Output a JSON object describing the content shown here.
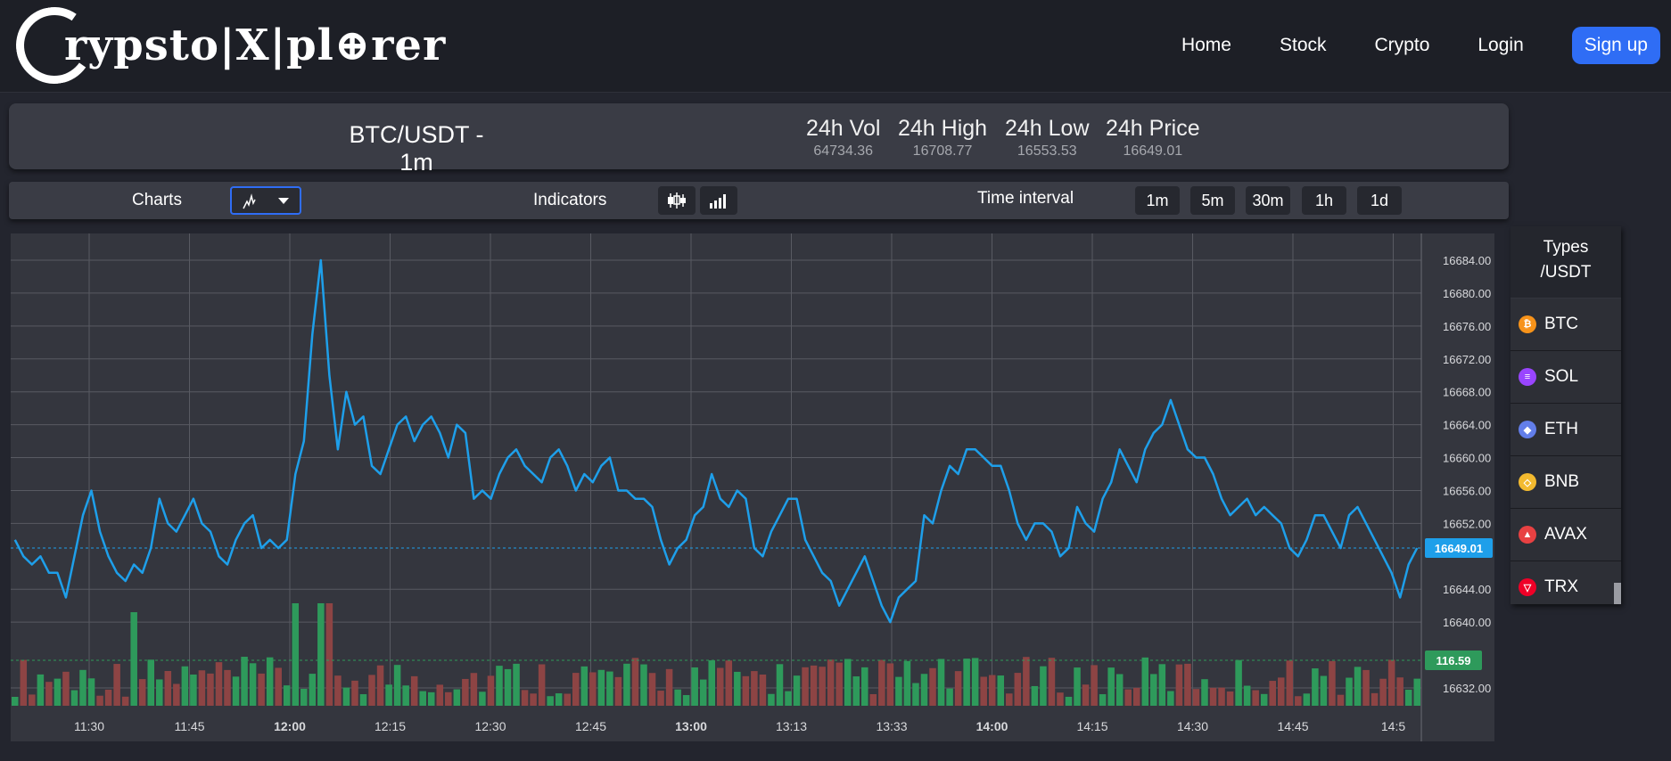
{
  "header": {
    "logo_text": "rypsto|X|pl⊕rer",
    "nav": [
      "Home",
      "Stock",
      "Crypto",
      "Login"
    ],
    "signup_label": "Sign up"
  },
  "market": {
    "pair": "BTC/USDT - 1m",
    "stats": [
      {
        "label": "24h Vol",
        "value": "64734.36"
      },
      {
        "label": "24h High",
        "value": "16708.77"
      },
      {
        "label": "24h Low",
        "value": "16553.53"
      },
      {
        "label": "24h Price",
        "value": "16649.01"
      }
    ]
  },
  "toolbar": {
    "charts_label": "Charts",
    "indicators_label": "Indicators",
    "interval_label": "Time interval",
    "intervals": [
      "1m",
      "5m",
      "30m",
      "1h",
      "1d"
    ]
  },
  "sidebar": {
    "title_line1": "Types",
    "title_line2": "/USDT",
    "coins": [
      {
        "name": "BTC",
        "color": "#f7931a",
        "glyph": "₿"
      },
      {
        "name": "SOL",
        "color": "#9945ff",
        "glyph": "≡"
      },
      {
        "name": "ETH",
        "color": "#627eea",
        "glyph": "◆"
      },
      {
        "name": "BNB",
        "color": "#f3ba2f",
        "glyph": "◇"
      },
      {
        "name": "AVAX",
        "color": "#e84142",
        "glyph": "▲"
      },
      {
        "name": "TRX",
        "color": "#ef0027",
        "glyph": "▽"
      }
    ]
  },
  "chart_data": {
    "type": "line",
    "ylabels": [
      "16684.00",
      "16680.00",
      "16676.00",
      "16672.00",
      "16668.00",
      "16664.00",
      "16660.00",
      "16656.00",
      "16652.00",
      "16644.00",
      "16640.00",
      "16632.00"
    ],
    "xlabels": [
      {
        "t": "11:30",
        "bold": false
      },
      {
        "t": "11:45",
        "bold": false
      },
      {
        "t": "12:00",
        "bold": true
      },
      {
        "t": "12:15",
        "bold": false
      },
      {
        "t": "12:30",
        "bold": false
      },
      {
        "t": "12:45",
        "bold": false
      },
      {
        "t": "13:00",
        "bold": true
      },
      {
        "t": "13:13",
        "bold": false
      },
      {
        "t": "13:33",
        "bold": false
      },
      {
        "t": "14:00",
        "bold": true
      },
      {
        "t": "14:15",
        "bold": false
      },
      {
        "t": "14:30",
        "bold": false
      },
      {
        "t": "14:45",
        "bold": false
      },
      {
        "t": "14:5",
        "bold": false
      }
    ],
    "price_label": "16649.01",
    "volume_label": "116.59",
    "line_color": "#1e9fea",
    "up_color": "#2e9a5b",
    "down_color": "#8d4444",
    "prices": [
      16650,
      16648,
      16647,
      16648,
      16646,
      16646,
      16643,
      16648,
      16653,
      16656,
      16651,
      16648,
      16646,
      16645,
      16647,
      16646,
      16649,
      16655,
      16652,
      16651,
      16653,
      16655,
      16652,
      16651,
      16648,
      16647,
      16650,
      16652,
      16653,
      16649,
      16650,
      16649,
      16650,
      16658,
      16662,
      16675,
      16684,
      16670,
      16661,
      16668,
      16664,
      16665,
      16659,
      16658,
      16661,
      16664,
      16665,
      16662,
      16664,
      16665,
      16663,
      16660,
      16664,
      16663,
      16655,
      16656,
      16655,
      16658,
      16660,
      16661,
      16659,
      16658,
      16657,
      16660,
      16661,
      16659,
      16656,
      16658,
      16657,
      16659,
      16660,
      16656,
      16656,
      16655,
      16655,
      16654,
      16650,
      16647,
      16649,
      16650,
      16653,
      16654,
      16658,
      16655,
      16654,
      16656,
      16655,
      16649,
      16648,
      16651,
      16653,
      16655,
      16655,
      16650,
      16648,
      16646,
      16645,
      16642,
      16644,
      16646,
      16648,
      16645,
      16642,
      16640,
      16643,
      16644,
      16645,
      16653,
      16652,
      16656,
      16659,
      16658,
      16661,
      16661,
      16660,
      16659,
      16659,
      16656,
      16652,
      16650,
      16652,
      16652,
      16651,
      16648,
      16649,
      16654,
      16652,
      16651,
      16655,
      16657,
      16661,
      16659,
      16657,
      16661,
      16663,
      16664,
      16667,
      16664,
      16661,
      16660,
      16660,
      16658,
      16655,
      16653,
      16654,
      16655,
      16653,
      16654,
      16653,
      16652,
      16649,
      16648,
      16650,
      16653,
      16653,
      16651,
      16649,
      16653,
      16654,
      16652,
      16650,
      16648,
      16646,
      16643,
      16647,
      16649
    ]
  }
}
